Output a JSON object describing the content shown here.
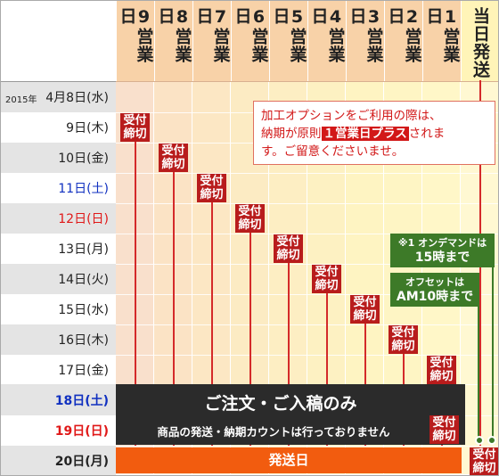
{
  "header": {
    "columns": [
      {
        "num": "9",
        "text": "営業日"
      },
      {
        "num": "8",
        "text": "営業日"
      },
      {
        "num": "7",
        "text": "営業日"
      },
      {
        "num": "6",
        "text": "営業日"
      },
      {
        "num": "5",
        "text": "営業日"
      },
      {
        "num": "4",
        "text": "営業日"
      },
      {
        "num": "3",
        "text": "営業日"
      },
      {
        "num": "2",
        "text": "営業日"
      },
      {
        "num": "1",
        "text": "営業日"
      }
    ],
    "last_column": "当日発送"
  },
  "rows": {
    "year": "2015年",
    "first": "4月8日(水)",
    "r2": "9日(木)",
    "r3": "10日(金)",
    "r4": "11日(土)",
    "r5": "12日(日)",
    "r6": "13日(月)",
    "r7": "14日(火)",
    "r8": "15日(水)",
    "r9": "16日(木)",
    "r10": "17日(金)",
    "r11": "18日(土)",
    "r12": "19日(日)",
    "r13": "20日(月)"
  },
  "badge_text": "受付\n締切",
  "notice": {
    "line1": "加工オプションをご利用の際は、",
    "line2a": "納期が原則",
    "highlight": "１営業日プラス",
    "line2b": "されま",
    "line3": "す。ご留意くださいませ。"
  },
  "green_boxes": {
    "ondemand_title": "※1 オンデマンドは",
    "ondemand_time": "15時まで",
    "offset_title": "オフセットは",
    "offset_time": "AM10時まで"
  },
  "closed": {
    "title": "ご注文・ご入稿のみ",
    "subtitle": "商品の発送・納期カウントは行っておりません"
  },
  "shipping_label": "発送日",
  "footnote_mark": "※1",
  "colors": {
    "badge_red": "#b81c1c",
    "arrow_red": "#d42a2a",
    "green": "#3d7a28",
    "dark_band": "#2b2b2b",
    "shipping_orange": "#f25c0f",
    "header_orange": "#f8d2a8"
  }
}
